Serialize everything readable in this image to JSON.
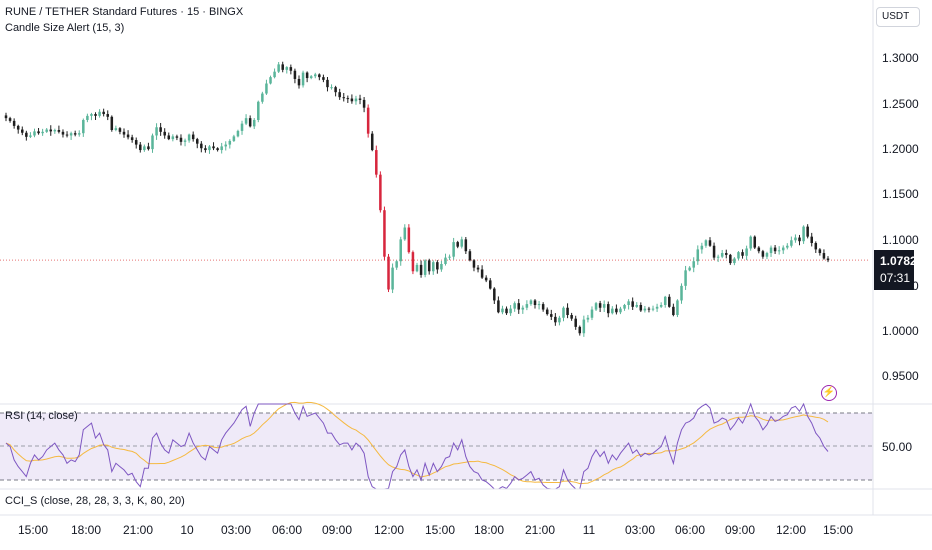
{
  "header": {
    "symbol_line": "RUNE / TETHER Standard Futures · 15 · BINGX",
    "indicator_line": "Candle Size Alert (15, 3)",
    "currency": "USDT"
  },
  "price_axis": {
    "labels": [
      "1.3000",
      "1.2500",
      "1.2000",
      "1.1500",
      "1.1000",
      "1.0500",
      "1.0000",
      "0.9500"
    ],
    "values": [
      1.3,
      1.25,
      1.2,
      1.15,
      1.1,
      1.05,
      1.0,
      0.95
    ]
  },
  "last_price": {
    "value": "1.0782",
    "countdown": "07:31"
  },
  "rsi_pane": {
    "title": "RSI (14, close)",
    "level_label": "50.00",
    "upper": 70,
    "middle": 50,
    "lower": 30
  },
  "cci_pane": {
    "title": "CCI_S (close, 28, 28, 3, 3, K, 80, 20)"
  },
  "time_axis": {
    "labels": [
      "15:00",
      "18:00",
      "21:00",
      "10",
      "03:00",
      "06:00",
      "09:00",
      "12:00",
      "15:00",
      "18:00",
      "21:00",
      "11",
      "03:00",
      "06:00",
      "09:00",
      "12:00",
      "15:00"
    ]
  },
  "colors": {
    "up": "#5ab59a",
    "down": "#1e1e1e",
    "alert": "#d7263d",
    "rsi_line": "#7e57c2",
    "rsi_ma": "#f5b941",
    "rsi_band": "#efeaf8"
  },
  "chart_data": {
    "type": "candlestick",
    "close_series": [
      1.234,
      1.231,
      1.2255,
      1.2215,
      1.218,
      1.2135,
      1.215,
      1.2195,
      1.2175,
      1.219,
      1.2215,
      1.2195,
      1.221,
      1.219,
      1.216,
      1.215,
      1.2175,
      1.216,
      1.2175,
      1.232,
      1.2365,
      1.2385,
      1.2365,
      1.241,
      1.2385,
      1.2355,
      1.221,
      1.223,
      1.219,
      1.216,
      1.213,
      1.21,
      1.205,
      1.199,
      1.203,
      1.2,
      1.215,
      1.224,
      1.219,
      1.215,
      1.211,
      1.214,
      1.2125,
      1.208,
      1.2095,
      1.216,
      1.211,
      1.206,
      1.201,
      1.199,
      1.203,
      1.201,
      1.199,
      1.203,
      1.205,
      1.209,
      1.214,
      1.22,
      1.228,
      1.234,
      1.225,
      1.232,
      1.252,
      1.261,
      1.272,
      1.279,
      1.285,
      1.293,
      1.287,
      1.29,
      1.286,
      1.277,
      1.27,
      1.284,
      1.278,
      1.28,
      1.282,
      1.279,
      1.276,
      1.268,
      1.268,
      1.2625,
      1.257,
      1.256,
      1.2555,
      1.2525,
      1.2555,
      1.254,
      1.2455,
      1.217,
      1.199,
      1.172,
      1.133,
      1.082,
      1.046,
      1.07,
      1.077,
      1.101,
      1.114,
      1.087,
      1.066,
      1.073,
      1.062,
      1.078,
      1.066,
      1.076,
      1.068,
      1.074,
      1.081,
      1.082,
      1.098,
      1.093,
      1.101,
      1.088,
      1.078,
      1.07,
      1.068,
      1.059,
      1.056,
      1.047,
      1.034,
      1.021,
      1.025,
      1.02,
      1.025,
      1.031,
      1.024,
      1.026,
      1.03,
      1.034,
      1.029,
      1.03,
      1.024,
      1.019,
      1.016,
      1.01,
      1.015,
      1.026,
      1.018,
      1.014,
      1.005,
      0.998,
      1.013,
      1.015,
      1.024,
      1.031,
      1.026,
      1.03,
      1.02,
      1.025,
      1.021,
      1.025,
      1.029,
      1.033,
      1.027,
      1.029,
      1.023,
      1.025,
      1.024,
      1.025,
      1.027,
      1.029,
      1.038,
      1.027,
      1.018,
      1.034,
      1.05,
      1.067,
      1.07,
      1.077,
      1.09,
      1.094,
      1.1,
      1.094,
      1.081,
      1.082,
      1.086,
      1.084,
      1.075,
      1.08,
      1.087,
      1.083,
      1.091,
      1.104,
      1.092,
      1.088,
      1.082,
      1.086,
      1.092,
      1.088,
      1.089,
      1.092,
      1.094,
      1.1,
      1.103,
      1.099,
      1.115,
      1.104,
      1.097,
      1.09,
      1.086,
      1.08,
      1.0782
    ],
    "rsi_series": [
      52,
      50,
      42,
      38,
      35,
      32,
      40,
      45,
      42,
      44,
      48,
      50,
      52,
      48,
      45,
      40,
      42,
      41,
      45,
      60,
      62,
      64,
      55,
      58,
      51,
      48,
      35,
      40,
      38,
      36,
      33,
      34,
      29,
      26,
      37,
      37,
      55,
      58,
      52,
      48,
      46,
      54,
      52,
      50,
      51,
      58,
      52,
      48,
      44,
      42,
      50,
      48,
      46,
      54,
      58,
      61,
      64,
      68,
      72,
      74,
      62,
      70,
      76,
      78,
      80,
      82,
      84,
      86,
      78,
      80,
      77,
      70,
      66,
      74,
      68,
      69,
      70,
      67,
      64,
      58,
      58,
      54,
      51,
      52,
      52,
      48,
      52,
      50,
      46,
      32,
      26,
      22,
      20,
      18,
      25,
      35,
      38,
      45,
      48,
      38,
      32,
      36,
      30,
      40,
      33,
      40,
      35,
      38,
      43,
      44,
      52,
      48,
      54,
      44,
      38,
      35,
      34,
      30,
      29,
      27,
      24,
      22,
      26,
      25,
      28,
      32,
      30,
      31,
      33,
      35,
      30,
      31,
      27,
      25,
      24,
      22,
      26,
      36,
      30,
      27,
      24,
      20,
      35,
      37,
      44,
      48,
      44,
      47,
      40,
      45,
      42,
      46,
      49,
      52,
      46,
      48,
      44,
      46,
      45,
      46,
      48,
      50,
      56,
      47,
      40,
      52,
      60,
      64,
      65,
      67,
      72,
      74,
      77,
      73,
      64,
      65,
      67,
      66,
      60,
      63,
      67,
      64,
      69,
      76,
      68,
      65,
      60,
      63,
      68,
      65,
      66,
      68,
      69,
      73,
      74,
      71,
      78,
      68,
      64,
      58,
      55,
      50,
      47
    ]
  }
}
